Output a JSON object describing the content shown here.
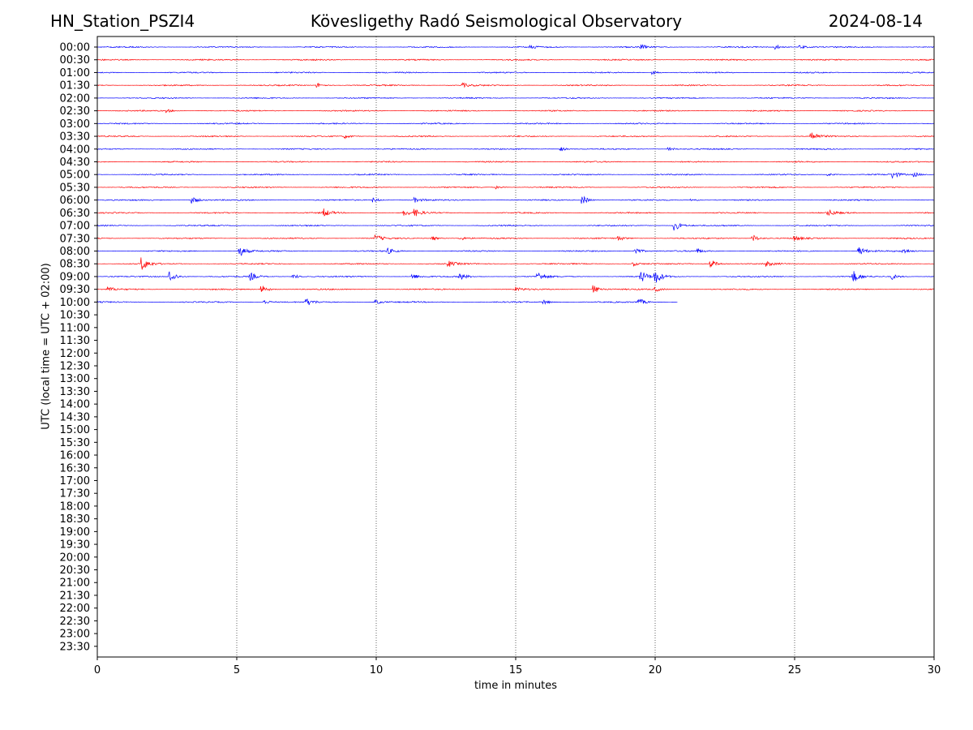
{
  "header": {
    "station": "HN_Station_PSZI4",
    "observatory": "Kövesligethy Radó Seismological Observatory",
    "date": "2024-08-14"
  },
  "chart_data": {
    "type": "line",
    "title": "Kövesligethy Radó Seismological Observatory",
    "xlabel": "time in minutes",
    "ylabel": "UTC (local time = UTC + 02:00)",
    "xlim": [
      0,
      30
    ],
    "x_ticks": [
      "0",
      "5",
      "10",
      "15",
      "20",
      "25",
      "30"
    ],
    "x_tick_values": [
      0,
      5,
      10,
      15,
      20,
      25,
      30
    ],
    "vertical_gridlines_at": [
      5,
      10,
      15,
      20,
      25
    ],
    "y_ticks": [
      "00:00",
      "00:30",
      "01:00",
      "01:30",
      "02:00",
      "02:30",
      "03:00",
      "03:30",
      "04:00",
      "04:30",
      "05:00",
      "05:30",
      "06:00",
      "06:30",
      "07:00",
      "07:30",
      "08:00",
      "08:30",
      "09:00",
      "09:30",
      "10:00",
      "10:30",
      "11:00",
      "11:30",
      "12:00",
      "12:30",
      "13:00",
      "13:30",
      "14:00",
      "14:30",
      "15:00",
      "15:30",
      "16:00",
      "16:30",
      "17:00",
      "17:30",
      "18:00",
      "18:30",
      "19:00",
      "19:30",
      "20:00",
      "20:30",
      "21:00",
      "21:30",
      "22:00",
      "22:30",
      "23:00",
      "23:30"
    ],
    "trace_colors": [
      "#0000ff",
      "#ff0000"
    ],
    "traces": [
      {
        "row": "00:00",
        "end_minute": 30,
        "events": [
          [
            15.5,
            0.25
          ],
          [
            19.5,
            0.3
          ],
          [
            24.3,
            0.35
          ],
          [
            25.2,
            0.3
          ]
        ]
      },
      {
        "row": "00:30",
        "end_minute": 30,
        "events": []
      },
      {
        "row": "01:00",
        "end_minute": 30,
        "events": [
          [
            19.9,
            0.25
          ]
        ]
      },
      {
        "row": "01:30",
        "end_minute": 30,
        "events": [
          [
            7.9,
            0.3
          ],
          [
            13.1,
            0.3
          ]
        ]
      },
      {
        "row": "02:00",
        "end_minute": 30,
        "events": []
      },
      {
        "row": "02:30",
        "end_minute": 30,
        "events": [
          [
            2.5,
            0.2
          ]
        ]
      },
      {
        "row": "03:00",
        "end_minute": 30,
        "events": []
      },
      {
        "row": "03:30",
        "end_minute": 30,
        "events": [
          [
            8.9,
            0.25
          ],
          [
            25.6,
            0.7
          ]
        ]
      },
      {
        "row": "04:00",
        "end_minute": 30,
        "events": [
          [
            16.6,
            0.3
          ],
          [
            20.5,
            0.25
          ]
        ]
      },
      {
        "row": "04:30",
        "end_minute": 30,
        "events": []
      },
      {
        "row": "05:00",
        "end_minute": 30,
        "events": [
          [
            26.2,
            0.2
          ],
          [
            28.5,
            0.5
          ],
          [
            29.3,
            0.3
          ]
        ]
      },
      {
        "row": "05:30",
        "end_minute": 30,
        "events": [
          [
            14.3,
            0.2
          ]
        ]
      },
      {
        "row": "06:00",
        "end_minute": 30,
        "events": [
          [
            3.4,
            0.5
          ],
          [
            9.9,
            0.3
          ],
          [
            11.4,
            0.3
          ],
          [
            17.4,
            0.6
          ],
          [
            21.3,
            0.2
          ]
        ]
      },
      {
        "row": "06:30",
        "end_minute": 30,
        "events": [
          [
            8.1,
            0.6
          ],
          [
            11.0,
            0.4
          ],
          [
            11.4,
            0.4
          ],
          [
            26.2,
            0.5
          ]
        ]
      },
      {
        "row": "07:00",
        "end_minute": 30,
        "events": [
          [
            20.7,
            0.7
          ]
        ]
      },
      {
        "row": "07:30",
        "end_minute": 30,
        "events": [
          [
            10.0,
            0.4
          ],
          [
            12.0,
            0.3
          ],
          [
            13.0,
            0.3
          ],
          [
            18.7,
            0.3
          ],
          [
            23.5,
            0.5
          ],
          [
            25.0,
            0.3
          ]
        ]
      },
      {
        "row": "08:00",
        "end_minute": 30,
        "events": [
          [
            5.1,
            0.8
          ],
          [
            10.4,
            0.4
          ],
          [
            19.3,
            0.5
          ],
          [
            21.5,
            0.3
          ],
          [
            27.3,
            0.7
          ],
          [
            28.9,
            0.3
          ]
        ]
      },
      {
        "row": "08:30",
        "end_minute": 30,
        "events": [
          [
            1.6,
            0.9
          ],
          [
            12.6,
            0.4
          ],
          [
            19.2,
            0.3
          ],
          [
            22.0,
            0.6
          ],
          [
            24.0,
            0.3
          ]
        ]
      },
      {
        "row": "09:00",
        "end_minute": 30,
        "events": [
          [
            2.6,
            0.9
          ],
          [
            5.5,
            0.5
          ],
          [
            7.0,
            0.4
          ],
          [
            11.3,
            0.4
          ],
          [
            13.0,
            0.5
          ],
          [
            15.8,
            0.6
          ],
          [
            19.5,
            0.8
          ],
          [
            20.0,
            0.9
          ],
          [
            27.1,
            0.8
          ],
          [
            28.5,
            0.4
          ]
        ]
      },
      {
        "row": "09:30",
        "end_minute": 30,
        "events": [
          [
            0.4,
            0.3
          ],
          [
            5.9,
            0.6
          ],
          [
            15.0,
            0.3
          ],
          [
            17.8,
            0.6
          ],
          [
            20.0,
            0.3
          ]
        ]
      },
      {
        "row": "10:00",
        "end_minute": 20.8,
        "events": [
          [
            6.0,
            0.3
          ],
          [
            7.5,
            0.5
          ],
          [
            10.0,
            0.3
          ],
          [
            16.0,
            0.3
          ],
          [
            19.4,
            0.5
          ]
        ]
      }
    ]
  }
}
